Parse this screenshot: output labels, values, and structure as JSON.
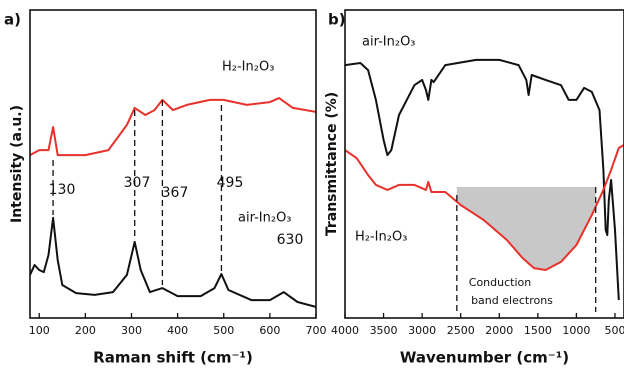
{
  "chart_data": [
    {
      "type": "line",
      "panel": "a)",
      "xlabel": "Raman shift (cm⁻¹)",
      "ylabel": "Intensity (a.u.)",
      "xlim": [
        80,
        700
      ],
      "xticks": [
        100,
        200,
        300,
        400,
        500,
        600,
        700
      ],
      "ylim": [
        0,
        100
      ],
      "peaks": [
        130,
        307,
        367,
        495,
        630
      ],
      "series": [
        {
          "name": "H₂-In₂O₃",
          "color": "#e8312a",
          "x": [
            80,
            100,
            120,
            130,
            140,
            200,
            250,
            290,
            307,
            330,
            350,
            367,
            390,
            420,
            470,
            500,
            550,
            600,
            620,
            650,
            700
          ],
          "values": [
            52.9,
            54.5,
            54.5,
            62.0,
            52.9,
            52.9,
            54.5,
            62.7,
            68.2,
            65.9,
            67.5,
            70.8,
            67.5,
            69.2,
            70.8,
            70.8,
            69.2,
            70.1,
            71.4,
            68.2,
            66.9
          ]
        },
        {
          "name": "air-In₂O₃",
          "color": "#111111",
          "x": [
            80,
            90,
            100,
            110,
            120,
            130,
            140,
            150,
            180,
            220,
            260,
            290,
            307,
            320,
            340,
            367,
            400,
            450,
            480,
            495,
            510,
            560,
            600,
            630,
            660,
            700
          ],
          "values": [
            14.0,
            17.2,
            15.6,
            14.9,
            20.5,
            32.5,
            18.8,
            10.7,
            8.1,
            7.5,
            8.4,
            14.0,
            24.7,
            15.6,
            8.4,
            9.7,
            7.1,
            7.1,
            9.7,
            14.3,
            9.1,
            5.8,
            5.8,
            8.4,
            5.2,
            3.6
          ]
        }
      ]
    },
    {
      "type": "line",
      "panel": "b)",
      "xlabel": "Wavenumber  (cm⁻¹)",
      "ylabel": "Transmittance (%)",
      "xlim": [
        4000,
        383
      ],
      "xticks": [
        4000,
        3500,
        3000,
        2500,
        2000,
        1500,
        1000,
        500
      ],
      "ylim": [
        0,
        100
      ],
      "markers": [
        2550,
        750
      ],
      "annotation": [
        "Conduction",
        "band electrons"
      ],
      "series": [
        {
          "name": "air-In₂O₃",
          "color": "#111111",
          "x": [
            4000,
            3800,
            3700,
            3600,
            3500,
            3450,
            3400,
            3300,
            3100,
            3000,
            2950,
            2920,
            2880,
            2850,
            2700,
            2300,
            2000,
            1750,
            1650,
            1620,
            1580,
            1400,
            1200,
            1100,
            1000,
            900,
            800,
            700,
            650,
            620,
            600,
            580,
            550,
            500,
            450
          ],
          "values": [
            82.1,
            82.8,
            80.5,
            70.8,
            57.8,
            52.9,
            54.5,
            65.9,
            75.6,
            77.3,
            74.0,
            70.8,
            77.3,
            76.6,
            82.1,
            83.8,
            83.8,
            82.1,
            77.3,
            72.4,
            78.9,
            77.3,
            75.6,
            70.8,
            70.8,
            74.7,
            73.4,
            67.5,
            48.1,
            28.6,
            26.9,
            38.3,
            44.8,
            28.6,
            5.8
          ]
        },
        {
          "name": "H₂-In₂O₃",
          "color": "#e8312a",
          "x": [
            4000,
            3850,
            3700,
            3600,
            3450,
            3300,
            3100,
            2950,
            2920,
            2880,
            2700,
            2500,
            2200,
            1900,
            1700,
            1550,
            1400,
            1200,
            1000,
            800,
            650,
            550,
            450,
            383
          ],
          "values": [
            54.5,
            51.9,
            46.4,
            43.2,
            41.6,
            43.2,
            43.2,
            41.6,
            44.2,
            40.9,
            40.9,
            36.7,
            31.8,
            25.3,
            19.5,
            16.2,
            15.6,
            18.2,
            23.7,
            33.4,
            41.6,
            48.1,
            55.2,
            56.2
          ]
        }
      ]
    }
  ]
}
